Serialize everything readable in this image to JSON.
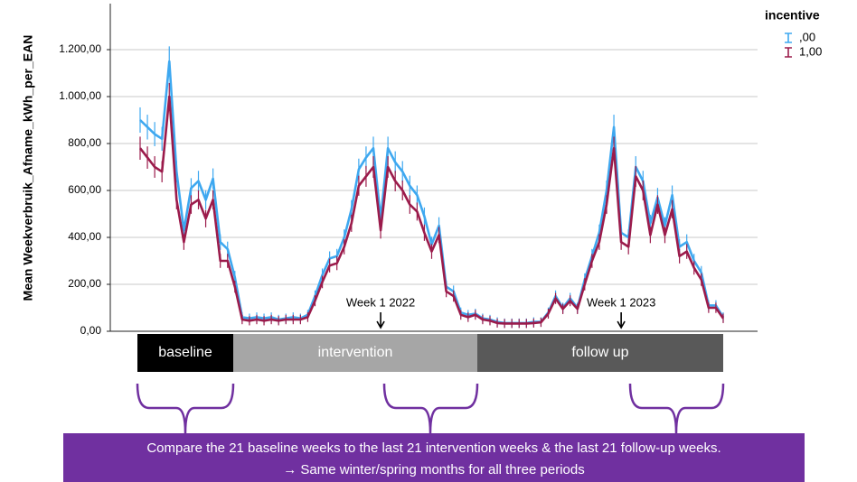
{
  "chart_data": {
    "type": "line",
    "y_label": "Mean Weekverbruik_Afname_kWh_per_EAN",
    "legend_title": "incentive",
    "legend_position": "top-right",
    "grid": true,
    "ylim": [
      0,
      1400
    ],
    "yticks": [
      {
        "value": 0,
        "label": "0,00"
      },
      {
        "value": 200,
        "label": "200,00"
      },
      {
        "value": 400,
        "label": "400,00"
      },
      {
        "value": 600,
        "label": "600,00"
      },
      {
        "value": 800,
        "label": "800,00"
      },
      {
        "value": 1000,
        "label": "1.000,00"
      },
      {
        "value": 1200,
        "label": "1.200,00"
      }
    ],
    "categories": [
      null,
      null,
      null,
      null,
      null,
      null,
      null,
      null,
      null,
      null,
      null,
      null,
      null,
      null,
      null,
      null,
      null,
      null,
      null,
      null,
      null,
      null,
      null,
      null,
      null,
      null,
      null,
      null,
      null,
      null,
      null,
      null,
      null,
      null,
      null,
      null,
      null,
      null,
      null,
      null,
      null,
      null,
      null,
      null,
      null,
      null,
      null,
      null,
      null,
      null,
      null,
      null,
      null,
      null,
      null,
      null,
      null,
      null,
      null,
      null,
      null,
      null,
      null,
      null,
      null,
      null,
      null,
      null,
      null,
      null,
      null,
      null,
      null,
      null,
      null,
      null,
      null,
      null,
      null,
      null,
      null
    ],
    "series": [
      {
        "name": ",00",
        "color": "#3ea8f0",
        "values": [
          900,
          870,
          840,
          820,
          1150,
          680,
          430,
          610,
          640,
          560,
          650,
          380,
          350,
          230,
          60,
          55,
          60,
          55,
          60,
          50,
          55,
          60,
          55,
          70,
          150,
          240,
          310,
          320,
          400,
          520,
          690,
          740,
          780,
          480,
          780,
          720,
          680,
          620,
          580,
          490,
          370,
          450,
          190,
          170,
          80,
          70,
          75,
          55,
          50,
          40,
          35,
          35,
          35,
          35,
          40,
          40,
          80,
          150,
          100,
          140,
          100,
          220,
          320,
          420,
          600,
          870,
          420,
          400,
          700,
          640,
          460,
          570,
          450,
          580,
          360,
          380,
          300,
          250,
          110,
          110,
          60
        ]
      },
      {
        "name": "1,00",
        "color": "#9b1b4b",
        "values": [
          780,
          740,
          700,
          680,
          1000,
          560,
          380,
          540,
          560,
          480,
          560,
          300,
          300,
          190,
          50,
          45,
          50,
          45,
          50,
          45,
          50,
          50,
          50,
          60,
          130,
          210,
          280,
          290,
          360,
          460,
          620,
          660,
          700,
          430,
          700,
          640,
          600,
          540,
          510,
          420,
          340,
          410,
          170,
          150,
          70,
          60,
          70,
          50,
          45,
          35,
          33,
          33,
          33,
          33,
          35,
          38,
          75,
          140,
          95,
          130,
          95,
          200,
          300,
          380,
          540,
          780,
          380,
          360,
          660,
          600,
          410,
          540,
          410,
          520,
          320,
          340,
          270,
          220,
          100,
          100,
          55
        ]
      }
    ],
    "annotations": [
      {
        "text": "Week 1 2022",
        "index": 33
      },
      {
        "text": "Week 1 2023",
        "index": 66
      }
    ],
    "periods": [
      "baseline",
      "intervention",
      "follow up"
    ],
    "note": [
      "Compare the 21 baseline weeks to the last 21 intervention weeks & the last 21 follow-up weeks.",
      "→ Same winter/spring months for all three periods"
    ]
  }
}
